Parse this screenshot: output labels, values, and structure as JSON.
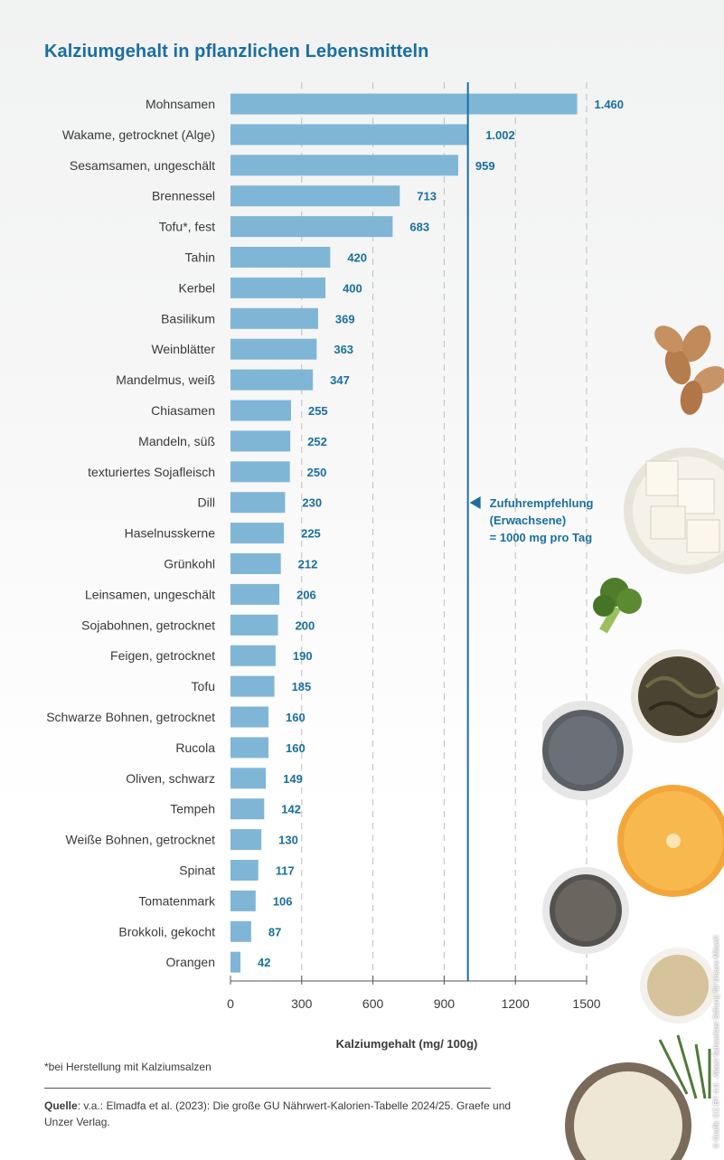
{
  "title": "Kalziumgehalt in pflanzlichen Lebensmitteln",
  "footnote": "*bei Herstellung mit Kalziumsalzen",
  "source_label": "Quelle",
  "source_text": ": v.a.: Elmadfa et al. (2023): Die große GU Nährwert-Kalorien-Tabelle 2024/25. Graefe und Unzer Verlag.",
  "credit": "© Grafik: CC BY 4.0 - Albert Schweitzer Stiftung für unsere Mitwelt",
  "colors": {
    "bar": "#7fb6d6",
    "accent": "#1a6fa0",
    "grid": "#bdbdbd",
    "axis": "#555555"
  },
  "chart_data": {
    "type": "bar",
    "orientation": "horizontal",
    "categories": [
      "Mohnsamen",
      "Wakame, getrocknet (Alge)",
      "Sesamsamen, ungeschält",
      "Brennessel",
      "Tofu*, fest",
      "Tahin",
      "Kerbel",
      "Basilikum",
      "Weinblätter",
      "Mandelmus, weiß",
      "Chiasamen",
      "Mandeln, süß",
      "texturiertes Sojafleisch",
      "Dill",
      "Haselnusskerne",
      "Grünkohl",
      "Leinsamen, ungeschält",
      "Sojabohnen, getrocknet",
      "Feigen, getrocknet",
      "Tofu",
      "Schwarze Bohnen, getrocknet",
      "Rucola",
      "Oliven, schwarz",
      "Tempeh",
      "Weiße Bohnen, getrocknet",
      "Spinat",
      "Tomatenmark",
      "Brokkoli, gekocht",
      "Orangen"
    ],
    "values": [
      1460,
      1002,
      959,
      713,
      683,
      420,
      400,
      369,
      363,
      347,
      255,
      252,
      250,
      230,
      225,
      212,
      206,
      200,
      190,
      185,
      160,
      160,
      149,
      142,
      130,
      117,
      106,
      87,
      42
    ],
    "value_labels": [
      "1.460",
      "1.002",
      "959",
      "713",
      "683",
      "420",
      "400",
      "369",
      "363",
      "347",
      "255",
      "252",
      "250",
      "230",
      "225",
      "212",
      "206",
      "200",
      "190",
      "185",
      "160",
      "160",
      "149",
      "142",
      "130",
      "117",
      "106",
      "87",
      "42"
    ],
    "xlim": [
      0,
      1500
    ],
    "xticks": [
      0,
      300,
      600,
      900,
      1200,
      1500
    ],
    "xlabel": "Kalziumgehalt (mg/ 100g)",
    "ylabel": "",
    "grid": "vertical dashed",
    "reference_line": {
      "value": 1000,
      "label_lines": [
        "Zufuhrempfehlung",
        "(Erwachsene)",
        "= 1000 mg pro Tag"
      ]
    }
  }
}
